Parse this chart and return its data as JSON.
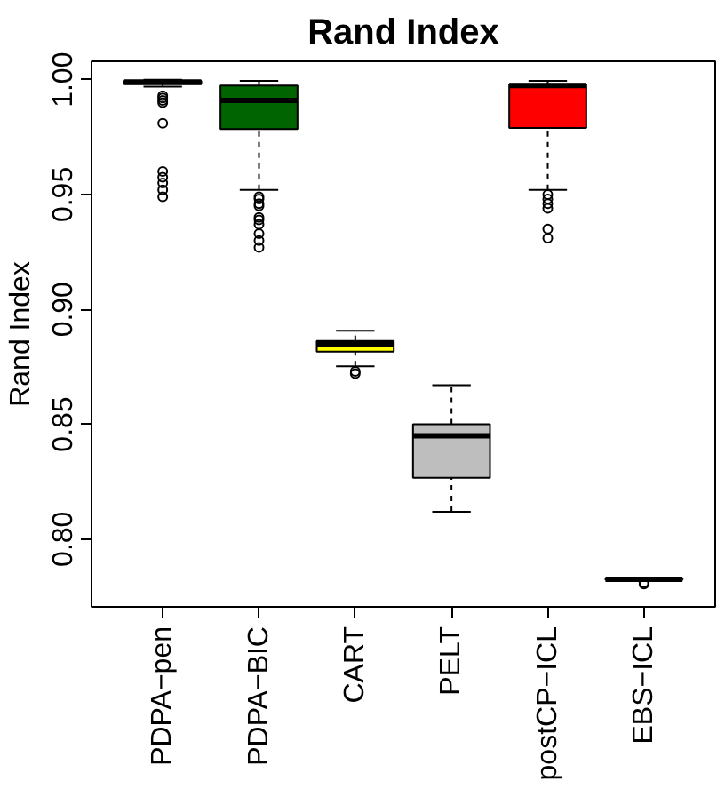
{
  "chart_data": {
    "type": "box",
    "title": "Rand Index",
    "ylabel": "Rand Index",
    "categories": [
      "PDPA−pen",
      "PDPA−BIC",
      "CART",
      "PELT",
      "postCP−ICL",
      "EBS−ICL"
    ],
    "colors": [
      "#ffffff",
      "#006400",
      "#ffff00",
      "#bebebe",
      "#ff0000",
      "#ffffff"
    ],
    "boxes": [
      {
        "low": 0.997,
        "q1": 0.998,
        "median": 0.999,
        "q3": 0.9995,
        "high": 1.0,
        "outliers": [
          0.993,
          0.992,
          0.991,
          0.99,
          0.981,
          0.96,
          0.9575,
          0.955,
          0.952,
          0.949
        ]
      },
      {
        "low": 0.952,
        "q1": 0.9785,
        "median": 0.991,
        "q3": 0.9975,
        "high": 0.9995,
        "outliers": [
          0.949,
          0.948,
          0.946,
          0.945,
          0.94,
          0.939,
          0.937,
          0.933,
          0.93,
          0.927
        ]
      },
      {
        "low": 0.8752,
        "q1": 0.8816,
        "median": 0.885,
        "q3": 0.8863,
        "high": 0.8907,
        "outliers": [
          0.873,
          0.872
        ]
      },
      {
        "low": 0.8119,
        "q1": 0.8267,
        "median": 0.845,
        "q3": 0.85,
        "high": 0.867
      },
      {
        "low": 0.952,
        "q1": 0.979,
        "median": 0.9975,
        "q3": 0.998,
        "high": 0.9995,
        "outliers": [
          0.95,
          0.948,
          0.946,
          0.944,
          0.935,
          0.931
        ]
      },
      {
        "low": 0.7822,
        "q1": 0.7823,
        "median": 0.7825,
        "q3": 0.7827,
        "high": 0.7828,
        "outliers": [
          0.781,
          0.7805
        ]
      }
    ],
    "ylim": [
      0.7705,
      1.008
    ],
    "yticks": [
      {
        "value": 0.8,
        "label": "0.80"
      },
      {
        "value": 0.85,
        "label": "0.85"
      },
      {
        "value": 0.9,
        "label": "0.90"
      },
      {
        "value": 0.95,
        "label": "0.95"
      },
      {
        "value": 1.0,
        "label": "1.00"
      }
    ]
  }
}
